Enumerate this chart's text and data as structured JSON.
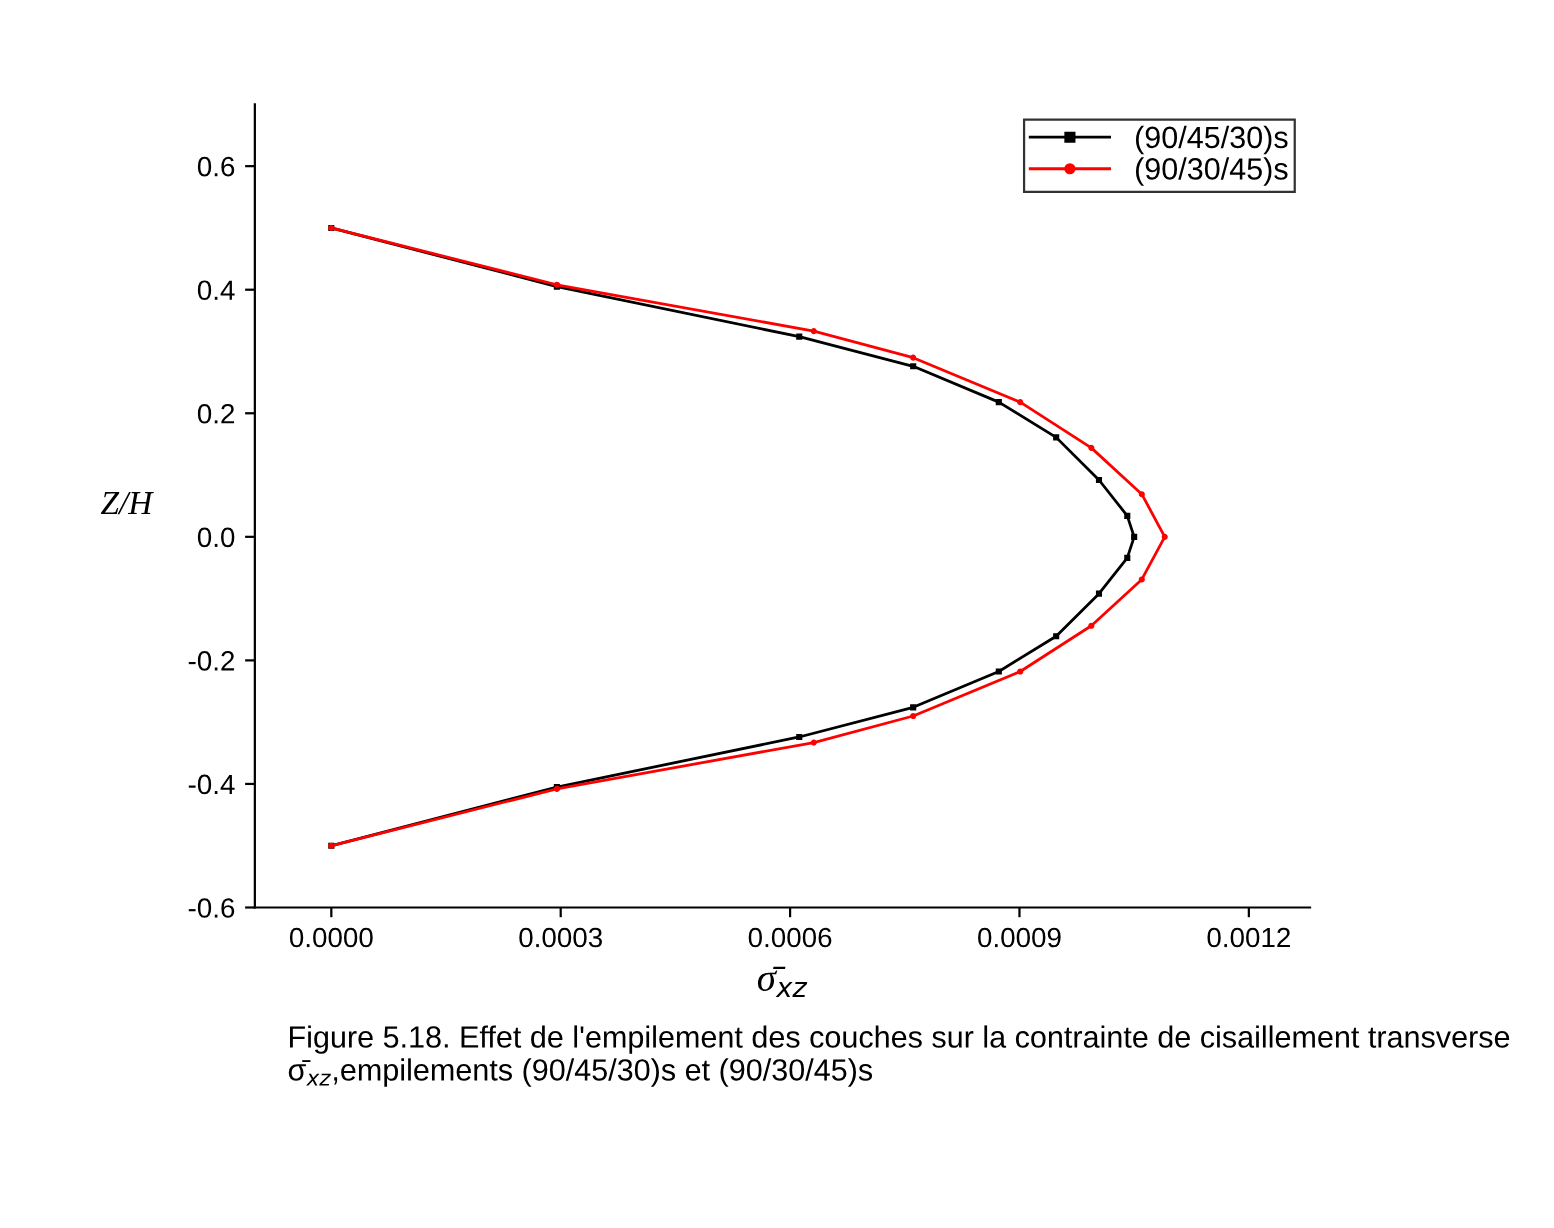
{
  "chart_data": {
    "type": "line",
    "xlabel": "σ̄$_{xz}$",
    "ylabel": "Z/H",
    "xlim": [
      -0.0001,
      0.00128
    ],
    "xticks": [
      {
        "value": 0,
        "label": "0.0000"
      },
      {
        "value": 0.0003,
        "label": "0.0003"
      },
      {
        "value": 0.0006,
        "label": "0.0006"
      },
      {
        "value": 0.0009,
        "label": "0.0009"
      },
      {
        "value": 0.0012,
        "label": "0.0012"
      }
    ],
    "ylim": [
      -0.6,
      0.7
    ],
    "yticks": [
      {
        "value": -0.6,
        "label": "-0.6"
      },
      {
        "value": -0.4,
        "label": "-0.4"
      },
      {
        "value": -0.2,
        "label": "-0.2"
      },
      {
        "value": 0,
        "label": "0.0"
      },
      {
        "value": 0.2,
        "label": "0.2"
      },
      {
        "value": 0.4,
        "label": "0.4"
      },
      {
        "value": 0.6,
        "label": "0.6"
      }
    ],
    "legend": "top right",
    "grid": false,
    "line_style": "solid",
    "series": [
      {
        "name": "(90/45/30)s",
        "color": "#000000",
        "marker": "square",
        "x": [
          0,
          0.000295,
          0.000612,
          0.000761,
          0.000873,
          0.000948,
          0.001004,
          0.001041,
          0.00105,
          0.001041,
          0.001004,
          0.000948,
          0.000873,
          0.000761,
          0.000612,
          0.000295,
          0
        ],
        "values": [
          0.5,
          0.405,
          0.324,
          0.276,
          0.218,
          0.161,
          0.092,
          0.034,
          0,
          -0.034,
          -0.092,
          -0.161,
          -0.218,
          -0.276,
          -0.324,
          -0.405,
          -0.5
        ]
      },
      {
        "name": "(90/30/45)s",
        "color": "#ff0000",
        "marker": "circle",
        "x": [
          0,
          0.000295,
          0.000631,
          0.000761,
          0.000901,
          0.000994,
          0.00106,
          0.00109,
          0.00106,
          0.000994,
          0.000901,
          0.000761,
          0.000631,
          0.000295,
          0
        ],
        "values": [
          0.5,
          0.408,
          0.333,
          0.29,
          0.218,
          0.144,
          0.069,
          0,
          -0.069,
          -0.144,
          -0.218,
          -0.29,
          -0.333,
          -0.408,
          -0.5
        ]
      }
    ],
    "annotations": [
      "Figure 5.18. Effet de l'empilement des couches sur la contrainte de cisaillement transverse σ̄$_{xz}$,empilements (90/45/30)s et (90/30/45)s"
    ]
  }
}
